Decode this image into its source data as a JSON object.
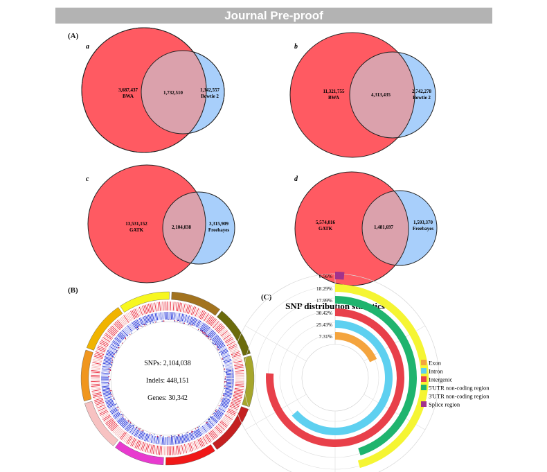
{
  "header": {
    "banner": "Journal Pre-proof"
  },
  "panels": {
    "a": "(A)",
    "b": "(B)",
    "c": "(C)"
  },
  "venns": [
    {
      "letter": "a",
      "left": "3,687,437",
      "left_name": "BWA",
      "overlap": "1,732,510",
      "right": "1,342,557",
      "right_name": "Bowtie 2"
    },
    {
      "letter": "b",
      "left": "11,321,755",
      "left_name": "BWA",
      "overlap": "4,313,435",
      "right": "2,742,278",
      "right_name": "Bowtie 2"
    },
    {
      "letter": "c",
      "left": "13,531,152",
      "left_name": "GATK",
      "overlap": "2,104,038",
      "right": "3,315,909",
      "right_name": "Freebayes"
    },
    {
      "letter": "d",
      "left": "5,574,016",
      "left_name": "GATK",
      "overlap": "1,481,697",
      "right": "1,593,370",
      "right_name": "Freebayes"
    }
  ],
  "circos": {
    "snps": "SNPs: 2,104,038",
    "indels": "Indels: 448,151",
    "genes": "Genes: 30,342"
  },
  "colors": {
    "venn_left": "#ff5a62",
    "venn_right": "#a8cffb",
    "venn_overlap": "#dba1ac"
  },
  "chart_data": {
    "type": "radial-bar",
    "title": "SNP distribution statistics",
    "categories": [
      "Exon",
      "Intron",
      "Intergenic",
      "5'UTR non-coding region",
      "3'UTR non-coding region",
      "Splice region"
    ],
    "values": [
      7.31,
      25.43,
      30.42,
      17.99,
      18.29,
      0.56
    ],
    "value_labels": [
      "7.31%",
      "25.43%",
      "30.42%",
      "17.99%",
      "18.29%",
      "0.56%"
    ],
    "colors": [
      "#f4a43e",
      "#5ed0f0",
      "#e8404a",
      "#1fb46e",
      "#f5f533",
      "#a2338c"
    ],
    "legend": "right"
  }
}
